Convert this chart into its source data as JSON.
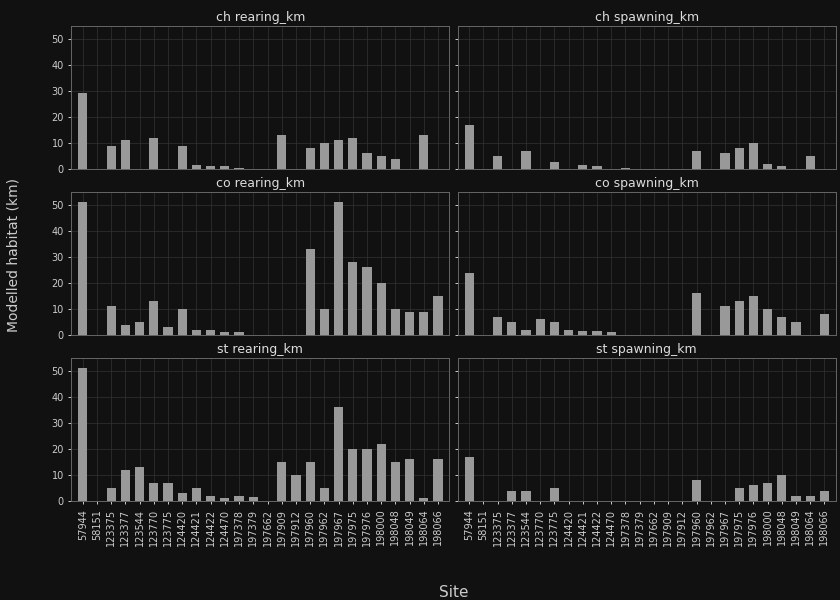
{
  "sites": [
    "57944",
    "58151",
    "123375",
    "123377",
    "123544",
    "123770",
    "123775",
    "124420",
    "124421",
    "124422",
    "124470",
    "197378",
    "197379",
    "197662",
    "197909",
    "197912",
    "197960",
    "197962",
    "197967",
    "197975",
    "197976",
    "198000",
    "198048",
    "198049",
    "198064",
    "198066"
  ],
  "ch_rearing_km": [
    29,
    0,
    9,
    11,
    0,
    12,
    0,
    9,
    1.5,
    1,
    1,
    0.5,
    0,
    0,
    13,
    0,
    8,
    10,
    11,
    12,
    6,
    5,
    4,
    0,
    13,
    0
  ],
  "ch_spawning_km": [
    17,
    0,
    5,
    0,
    7,
    0,
    2.5,
    0,
    1.5,
    1,
    0,
    0.5,
    0,
    0,
    0,
    0,
    7,
    0,
    6,
    8,
    10,
    2,
    1,
    0,
    5,
    0
  ],
  "co_rearing_km": [
    51,
    0,
    11,
    4,
    5,
    13,
    3,
    10,
    2,
    2,
    1,
    1,
    0,
    0,
    0,
    0,
    33,
    10,
    51,
    28,
    26,
    20,
    10,
    9,
    9,
    15
  ],
  "co_spawning_km": [
    24,
    0,
    7,
    5,
    2,
    6,
    5,
    2,
    1.5,
    1.5,
    1,
    0,
    0,
    0,
    0,
    0,
    16,
    0,
    11,
    13,
    15,
    10,
    7,
    5,
    0,
    8
  ],
  "st_rearing_km": [
    51,
    0,
    5,
    12,
    13,
    7,
    7,
    3,
    5,
    2,
    1,
    2,
    1.5,
    0,
    15,
    10,
    15,
    5,
    36,
    20,
    20,
    22,
    15,
    16,
    1,
    16
  ],
  "st_spawning_km": [
    17,
    0,
    0,
    4,
    4,
    0,
    5,
    0,
    0,
    0,
    0,
    0,
    0,
    0,
    0,
    0,
    8,
    0,
    0,
    5,
    6,
    7,
    10,
    2,
    2,
    4
  ],
  "panel_titles": [
    "ch rearing_km",
    "ch spawning_km",
    "co rearing_km",
    "co spawning_km",
    "st rearing_km",
    "st spawning_km"
  ],
  "series_keys": [
    "ch_rearing_km",
    "ch_spawning_km",
    "co_rearing_km",
    "co_spawning_km",
    "st_rearing_km",
    "st_spawning_km"
  ],
  "bar_color": "#999999",
  "bg_color": "#111111",
  "strip_bg": "#2b2b2b",
  "strip_text_color": "#dddddd",
  "plot_bg": "#111111",
  "text_color": "#cccccc",
  "grid_color": "#333333",
  "spine_color": "#666666",
  "ylabel": "Modelled habitat (km)",
  "xlabel": "Site",
  "ylim": [
    0,
    55
  ],
  "yticks": [
    0,
    10,
    20,
    30,
    40,
    50
  ],
  "title_fontsize": 9,
  "tick_fontsize": 7,
  "label_fontsize": 10
}
